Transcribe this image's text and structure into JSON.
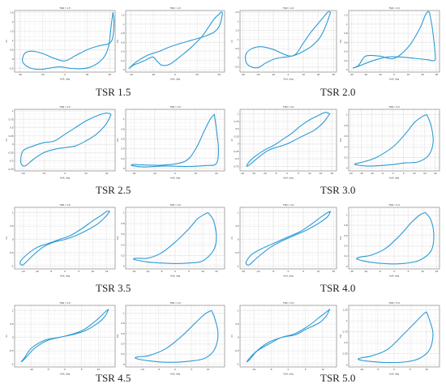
{
  "captions": [
    "TSR 1.5",
    "TSR 2.0",
    "TSR 2.5",
    "TSR 3.0",
    "TSR 3.5",
    "TSR 4.0",
    "TSR 4.5",
    "TSR 5.0"
  ],
  "line_color": "#2c9bd6",
  "chart_data": [
    {
      "type": "line",
      "title": "TSR = 1.5",
      "xlabel": "AoA, deg",
      "ylabel": "Cl",
      "xlim": [
        -45,
        45
      ],
      "ylim": [
        -0.7,
        2.6
      ],
      "xticks": [
        -40,
        -20,
        0,
        20,
        40
      ],
      "yticks": [
        -0.5,
        0,
        0.5,
        1,
        1.5,
        2,
        2.5
      ],
      "series": [
        {
          "x": [
            43,
            41.5,
            40,
            38,
            35,
            30,
            25,
            20,
            15,
            10,
            5,
            0,
            -5,
            -10,
            -15,
            -20,
            -25,
            -30,
            -35,
            -38,
            -36,
            -30,
            -20,
            -10,
            0,
            10,
            20,
            30,
            38,
            41,
            43,
            44,
            43
          ],
          "y": [
            2.5,
            1.8,
            1.0,
            0.45,
            0.1,
            -0.2,
            -0.38,
            -0.48,
            -0.52,
            -0.52,
            -0.5,
            -0.45,
            -0.42,
            -0.45,
            -0.5,
            -0.55,
            -0.55,
            -0.5,
            -0.35,
            -0.1,
            0.3,
            0.42,
            0.3,
            0.05,
            -0.1,
            0.2,
            0.5,
            0.7,
            0.8,
            0.9,
            1.2,
            2.0,
            2.5
          ]
        }
      ]
    },
    {
      "type": "line",
      "title": "TSR = 1.5",
      "xlabel": "AoA, deg",
      "ylabel": "Cd",
      "xlim": [
        -45,
        45
      ],
      "ylim": [
        -0.05,
        1.3
      ],
      "xticks": [
        -40,
        -20,
        0,
        20,
        40
      ],
      "yticks": [
        0,
        0.2,
        0.4,
        0.6,
        0.8,
        1.0,
        1.2
      ],
      "series": [
        {
          "x": [
            43,
            42,
            40,
            35,
            25,
            15,
            5,
            -5,
            -15,
            -25,
            -35,
            -42,
            -38,
            -33,
            -28,
            -24,
            -20,
            -16,
            -12,
            -5,
            5,
            15,
            25,
            35,
            40,
            42,
            43
          ],
          "y": [
            1.25,
            1.1,
            0.95,
            0.82,
            0.72,
            0.65,
            0.58,
            0.5,
            0.4,
            0.32,
            0.18,
            0.03,
            0.1,
            0.15,
            0.2,
            0.25,
            0.28,
            0.18,
            0.1,
            0.12,
            0.3,
            0.5,
            0.75,
            1.1,
            1.22,
            1.27,
            1.25
          ]
        }
      ]
    },
    {
      "type": "line",
      "title": "TSR = 2.0",
      "xlabel": "AoA, deg",
      "ylabel": "Cl",
      "xlim": [
        -32,
        32
      ],
      "ylim": [
        -0.8,
        2.6
      ],
      "xticks": [
        -30,
        -20,
        -10,
        0,
        10,
        20,
        30
      ],
      "yticks": [
        -0.5,
        0,
        0.5,
        1.0,
        1.5,
        2.0,
        2.5
      ],
      "series": [
        {
          "x": [
            28,
            26,
            23,
            20,
            15,
            10,
            5,
            0,
            -5,
            -10,
            -15,
            -20,
            -25,
            -28,
            -28,
            -24,
            -18,
            -10,
            0,
            5,
            10,
            15,
            20,
            24,
            26,
            27,
            28
          ],
          "y": [
            2.5,
            2.0,
            1.4,
            1.0,
            0.6,
            0.35,
            0.15,
            0.05,
            0.0,
            -0.1,
            -0.3,
            -0.55,
            -0.5,
            -0.25,
            0.2,
            0.5,
            0.6,
            0.45,
            0.1,
            0.2,
            0.8,
            1.4,
            1.9,
            2.3,
            2.5,
            2.55,
            2.5
          ]
        }
      ]
    },
    {
      "type": "line",
      "title": "TSR = 2.0",
      "xlabel": "AoA, deg",
      "ylabel": "Cd",
      "xlim": [
        -32,
        32
      ],
      "ylim": [
        -0.05,
        1.3
      ],
      "xticks": [
        -30,
        -20,
        -10,
        0,
        10,
        20,
        30
      ],
      "yticks": [
        0,
        0.2,
        0.4,
        0.6,
        0.8,
        1.0,
        1.2
      ],
      "series": [
        {
          "x": [
            25,
            27,
            29,
            28,
            24,
            15,
            5,
            -5,
            -15,
            -25,
            -29,
            -25,
            -20,
            -10,
            0,
            10,
            18,
            22,
            24,
            25
          ],
          "y": [
            1.25,
            0.9,
            0.3,
            0.2,
            0.22,
            0.25,
            0.28,
            0.28,
            0.2,
            0.08,
            0.04,
            0.1,
            0.3,
            0.3,
            0.25,
            0.5,
            0.9,
            1.2,
            1.28,
            1.25
          ]
        }
      ]
    },
    {
      "type": "line",
      "title": "TSR = 2.5",
      "xlabel": "AoA, deg",
      "ylabel": "Cl",
      "xlim": [
        -24,
        24
      ],
      "ylim": [
        -0.8,
        1.05
      ],
      "xticks": [
        -20,
        -10,
        0,
        10,
        20
      ],
      "yticks": [
        -0.75,
        -0.5,
        -0.25,
        0,
        0.25,
        0.5,
        0.75,
        1.0
      ],
      "series": [
        {
          "x": [
            22,
            21,
            19,
            15,
            10,
            5,
            0,
            -5,
            -10,
            -15,
            -19,
            -21,
            -20,
            -15,
            -10,
            -5,
            0,
            5,
            10,
            15,
            19,
            21,
            22
          ],
          "y": [
            0.9,
            0.75,
            0.55,
            0.3,
            0.1,
            -0.05,
            -0.1,
            -0.15,
            -0.25,
            -0.45,
            -0.65,
            -0.55,
            -0.2,
            -0.05,
            0.05,
            0.1,
            0.3,
            0.5,
            0.7,
            0.85,
            0.93,
            0.93,
            0.9
          ]
        }
      ]
    },
    {
      "type": "line",
      "title": "TSR = 2.5",
      "xlabel": "AoA, deg",
      "ylabel": "Cd",
      "xlim": [
        -24,
        24
      ],
      "ylim": [
        -0.05,
        1.2
      ],
      "xticks": [
        -20,
        -10,
        0,
        10,
        20
      ],
      "yticks": [
        0,
        0.2,
        0.4,
        0.6,
        0.8,
        1.0
      ],
      "series": [
        {
          "x": [
            19,
            20,
            21,
            20,
            15,
            5,
            -5,
            -15,
            -21,
            -20,
            -15,
            -5,
            5,
            10,
            14,
            17,
            19
          ],
          "y": [
            1.1,
            0.8,
            0.4,
            0.1,
            0.06,
            0.04,
            0.05,
            0.03,
            0.06,
            0.08,
            0.07,
            0.07,
            0.15,
            0.4,
            0.75,
            1.0,
            1.1
          ]
        }
      ]
    },
    {
      "type": "line",
      "title": "TSR = 3.0",
      "xlabel": "AoA, deg",
      "ylabel": "Cl",
      "xlim": [
        -21,
        22
      ],
      "ylim": [
        -0.9,
        1.15
      ],
      "xticks": [
        -20,
        -15,
        -10,
        -5,
        0,
        5,
        10,
        15,
        20
      ],
      "yticks": [
        -0.75,
        -0.5,
        -0.25,
        0,
        0.25,
        0.5,
        0.75,
        1.0
      ],
      "series": [
        {
          "x": [
            19,
            18,
            16,
            12,
            8,
            4,
            0,
            -4,
            -8,
            -12,
            -16,
            -18,
            -17,
            -14,
            -10,
            -6,
            -2,
            2,
            6,
            10,
            14,
            17,
            19
          ],
          "y": [
            1.0,
            0.9,
            0.7,
            0.45,
            0.3,
            0.15,
            0.0,
            -0.1,
            -0.2,
            -0.4,
            -0.65,
            -0.75,
            -0.6,
            -0.4,
            -0.2,
            -0.05,
            0.15,
            0.35,
            0.6,
            0.8,
            0.95,
            1.05,
            1.0
          ]
        }
      ]
    },
    {
      "type": "line",
      "title": "TSR = 3.0",
      "xlabel": "AoA, deg",
      "ylabel": "Cd",
      "xlim": [
        -21,
        22
      ],
      "ylim": [
        -0.05,
        1.1
      ],
      "xticks": [
        -20,
        -15,
        -10,
        -5,
        0,
        5,
        10,
        15,
        20
      ],
      "yticks": [
        0,
        0.2,
        0.4,
        0.6,
        0.8,
        1.0
      ],
      "series": [
        {
          "x": [
            16,
            18,
            19,
            17,
            12,
            6,
            0,
            -6,
            -12,
            -17,
            -18,
            -14,
            -8,
            0,
            6,
            10,
            14,
            16
          ],
          "y": [
            1.0,
            0.8,
            0.5,
            0.25,
            0.12,
            0.1,
            0.07,
            0.05,
            0.04,
            0.06,
            0.08,
            0.12,
            0.2,
            0.4,
            0.65,
            0.85,
            0.97,
            1.0
          ]
        }
      ]
    },
    {
      "type": "line",
      "title": "TSR = 3.5",
      "xlabel": "AoA, deg",
      "ylabel": "Cl",
      "xlim": [
        -18,
        18
      ],
      "ylim": [
        -1.1,
        1.2
      ],
      "xticks": [
        -15,
        -10,
        -5,
        0,
        5,
        10,
        15
      ],
      "yticks": [
        -1.0,
        -0.5,
        0,
        0.5,
        1.0
      ],
      "series": [
        {
          "x": [
            16,
            15,
            12,
            8,
            4,
            0,
            -4,
            -8,
            -12,
            -15,
            -16,
            -14,
            -10,
            -6,
            -2,
            2,
            6,
            10,
            13,
            15,
            16
          ],
          "y": [
            1.05,
            0.9,
            0.6,
            0.35,
            0.15,
            0.0,
            -0.1,
            -0.3,
            -0.65,
            -0.95,
            -0.85,
            -0.6,
            -0.3,
            -0.15,
            0.0,
            0.15,
            0.4,
            0.7,
            0.9,
            1.05,
            1.05
          ]
        }
      ]
    },
    {
      "type": "line",
      "title": "TSR = 3.5",
      "xlabel": "AoA, deg",
      "ylabel": "Cd",
      "xlim": [
        -18,
        18
      ],
      "ylim": [
        -0.05,
        1.1
      ],
      "xticks": [
        -15,
        -10,
        -5,
        0,
        5,
        10,
        15
      ],
      "yticks": [
        0,
        0.2,
        0.4,
        0.6,
        0.8,
        1.0
      ],
      "series": [
        {
          "x": [
            12,
            14,
            15,
            14,
            10,
            5,
            0,
            -5,
            -10,
            -15,
            -14,
            -10,
            -5,
            0,
            5,
            8,
            11,
            12
          ],
          "y": [
            1.0,
            0.85,
            0.55,
            0.3,
            0.1,
            0.06,
            0.05,
            0.06,
            0.08,
            0.13,
            0.15,
            0.15,
            0.25,
            0.45,
            0.7,
            0.88,
            0.98,
            1.0
          ]
        }
      ]
    },
    {
      "type": "line",
      "title": "TSR = 4.0",
      "xlabel": "AoA, deg",
      "ylabel": "Cl",
      "xlim": [
        -16,
        16
      ],
      "ylim": [
        -1.1,
        1.2
      ],
      "xticks": [
        -15,
        -10,
        -5,
        0,
        5,
        10,
        15
      ],
      "yticks": [
        -1.0,
        -0.5,
        0,
        0.5,
        1.0
      ],
      "series": [
        {
          "x": [
            14,
            13,
            10,
            6,
            2,
            -2,
            -6,
            -10,
            -13,
            -14,
            -12,
            -8,
            -4,
            0,
            4,
            8,
            11,
            13,
            14
          ],
          "y": [
            1.05,
            0.85,
            0.6,
            0.35,
            0.15,
            -0.05,
            -0.3,
            -0.65,
            -0.95,
            -0.85,
            -0.55,
            -0.3,
            -0.1,
            0.1,
            0.3,
            0.6,
            0.85,
            1.0,
            1.05
          ]
        }
      ]
    },
    {
      "type": "line",
      "title": "TSR = 4.0",
      "xlabel": "AoA, deg",
      "ylabel": "Cd",
      "xlim": [
        -16,
        16
      ],
      "ylim": [
        -0.05,
        1.15
      ],
      "xticks": [
        -15,
        -10,
        -5,
        0,
        5,
        10,
        15
      ],
      "yticks": [
        0,
        0.2,
        0.4,
        0.6,
        0.8,
        1.0
      ],
      "series": [
        {
          "x": [
            11,
            13,
            14,
            13,
            9,
            4,
            -2,
            -8,
            -13,
            -12,
            -8,
            -3,
            2,
            6,
            9,
            11
          ],
          "y": [
            1.05,
            0.9,
            0.6,
            0.3,
            0.12,
            0.06,
            0.05,
            0.08,
            0.14,
            0.18,
            0.22,
            0.35,
            0.6,
            0.85,
            1.0,
            1.05
          ]
        }
      ]
    },
    {
      "type": "line",
      "title": "TSR = 4.5",
      "xlabel": "AoA, deg",
      "ylabel": "Cl",
      "xlim": [
        -15,
        15
      ],
      "ylim": [
        -1.1,
        1.2
      ],
      "xticks": [
        -10,
        -5,
        0,
        5,
        10
      ],
      "yticks": [
        -1.0,
        -0.5,
        0,
        0.5,
        1.0
      ],
      "series": [
        {
          "x": [
            13,
            12,
            10,
            6,
            2,
            -2,
            -6,
            -10,
            -12,
            -13,
            -12,
            -9,
            -5,
            0,
            5,
            9,
            12,
            13
          ],
          "y": [
            1.05,
            0.8,
            0.55,
            0.25,
            0.1,
            0.0,
            -0.1,
            -0.4,
            -0.75,
            -0.9,
            -0.8,
            -0.4,
            -0.1,
            0.05,
            0.25,
            0.6,
            0.95,
            1.05
          ]
        }
      ]
    },
    {
      "type": "line",
      "title": "TSR = 4.5",
      "xlabel": "AoA, deg",
      "ylabel": "Cd",
      "xlim": [
        -15,
        15
      ],
      "ylim": [
        -0.05,
        1.15
      ],
      "xticks": [
        -10,
        -5,
        0,
        5,
        10
      ],
      "yticks": [
        0,
        0.2,
        0.4,
        0.6,
        0.8,
        1.0
      ],
      "series": [
        {
          "x": [
            11,
            12,
            13,
            12,
            9,
            4,
            -2,
            -8,
            -12,
            -11,
            -8,
            -3,
            2,
            6,
            9,
            11
          ],
          "y": [
            1.05,
            0.9,
            0.6,
            0.3,
            0.12,
            0.06,
            0.04,
            0.07,
            0.12,
            0.15,
            0.17,
            0.3,
            0.55,
            0.8,
            0.98,
            1.05
          ]
        }
      ]
    },
    {
      "type": "line",
      "title": "TSR = 5.0",
      "xlabel": "AoA, deg",
      "ylabel": "Cl",
      "xlim": [
        -14,
        14
      ],
      "ylim": [
        -1.1,
        1.2
      ],
      "xticks": [
        -10,
        -5,
        0,
        5,
        10
      ],
      "yticks": [
        -1.0,
        -0.5,
        0,
        0.5,
        1.0
      ],
      "series": [
        {
          "x": [
            12,
            11,
            9,
            5,
            2,
            -2,
            -5,
            -9,
            -11,
            -12,
            -10,
            -6,
            -2,
            2,
            6,
            9,
            11,
            12
          ],
          "y": [
            1.05,
            0.8,
            0.55,
            0.3,
            0.1,
            0.0,
            -0.2,
            -0.5,
            -0.8,
            -0.9,
            -0.6,
            -0.2,
            0.0,
            0.15,
            0.45,
            0.75,
            0.95,
            1.05
          ]
        }
      ]
    },
    {
      "type": "line",
      "title": "TSR = 5.0",
      "xlabel": "AoA, deg",
      "ylabel": "Cd",
      "xlim": [
        -14,
        14
      ],
      "ylim": [
        -0.05,
        1.35
      ],
      "xticks": [
        -10,
        -5,
        0,
        5,
        10
      ],
      "yticks": [
        0,
        0.25,
        0.5,
        0.75,
        1.0,
        1.25
      ],
      "series": [
        {
          "x": [
            10,
            11,
            12,
            11,
            8,
            4,
            -2,
            -8,
            -11,
            -10,
            -7,
            -2,
            3,
            7,
            9,
            10
          ],
          "y": [
            1.2,
            1.0,
            0.7,
            0.35,
            0.15,
            0.07,
            0.05,
            0.08,
            0.12,
            0.16,
            0.2,
            0.35,
            0.7,
            1.0,
            1.15,
            1.2
          ]
        }
      ]
    }
  ]
}
